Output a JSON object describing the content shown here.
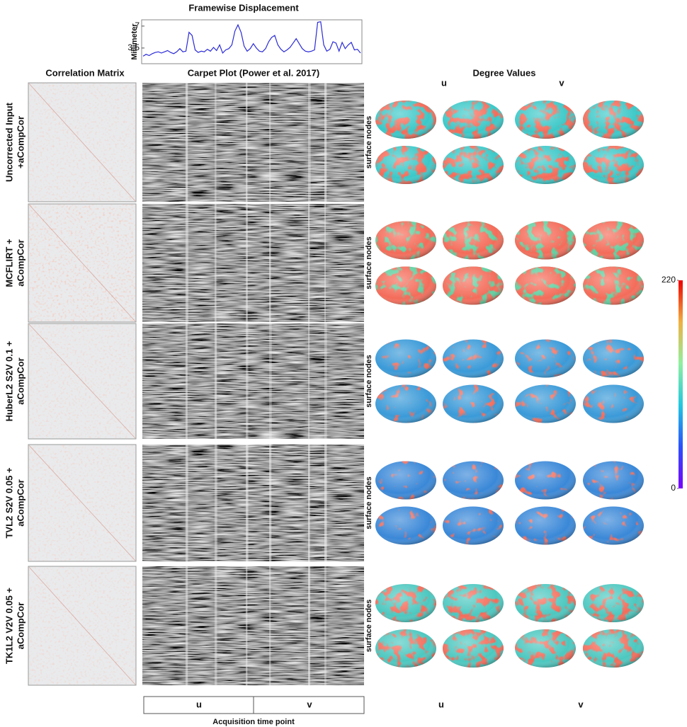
{
  "chart_data": {
    "type": "line",
    "title": "Framewise Displacement",
    "y_label": "Millimeter",
    "values": [
      2.2,
      2.5,
      2.3,
      2.6,
      2.8,
      2.9,
      2.7,
      2.9,
      3.1,
      2.8,
      2.6,
      2.9,
      3.4,
      2.9,
      3.0,
      6.0,
      5.5,
      3.2,
      2.8,
      3.0,
      2.9,
      3.3,
      3.0,
      3.6,
      3.1,
      4.0,
      2.7,
      3.2,
      3.4,
      4.0,
      6.2,
      7.2,
      6.0,
      3.8,
      3.0,
      3.4,
      4.2,
      3.5,
      3.0,
      2.9,
      3.4,
      4.5,
      5.2,
      5.5,
      4.0,
      3.3,
      2.9,
      3.2,
      3.6,
      4.3,
      5.0,
      4.2,
      3.4,
      3.0,
      2.9,
      3.0,
      3.2,
      7.6,
      7.7,
      4.0,
      3.0,
      3.3,
      4.5,
      4.3,
      3.0,
      4.4,
      3.4,
      4.0,
      4.4,
      3.2,
      3.3,
      2.7
    ],
    "color": "#2a2ad8",
    "ylim": [
      1,
      8
    ],
    "yticks": [
      {
        "value": 3.5,
        "label": "3,5"
      },
      7
    ]
  },
  "columns": [
    "Correlation Matrix",
    "Carpet Plot (Power et al. 2017)",
    "Degree Values"
  ],
  "degree_headers": [
    "u",
    "v"
  ],
  "rows": [
    {
      "label": [
        "Uncorrected Input",
        "+aCompCor"
      ],
      "nodes_label": "surface nodes"
    },
    {
      "label": [
        "MCFLIRT +",
        "aCompCor"
      ],
      "nodes_label": "surface nodes"
    },
    {
      "label": [
        "HuberL2 S2V 0.1 +",
        "aCompCor"
      ],
      "nodes_label": "surface nodes"
    },
    {
      "label": [
        "TVL2 S2V 0.05 +",
        "aCompCor"
      ],
      "nodes_label": "surface nodes"
    },
    {
      "label": [
        "TK1L2 V2V 0.05 +",
        "aCompCor"
      ],
      "nodes_label": "surface nodes"
    }
  ],
  "colorbar": {
    "ticks": [
      0,
      220
    ]
  },
  "carpet_axis": {
    "segments": [
      "u",
      "v"
    ],
    "label": "Acquisition time point"
  },
  "degree_footer": [
    "u",
    "v"
  ]
}
